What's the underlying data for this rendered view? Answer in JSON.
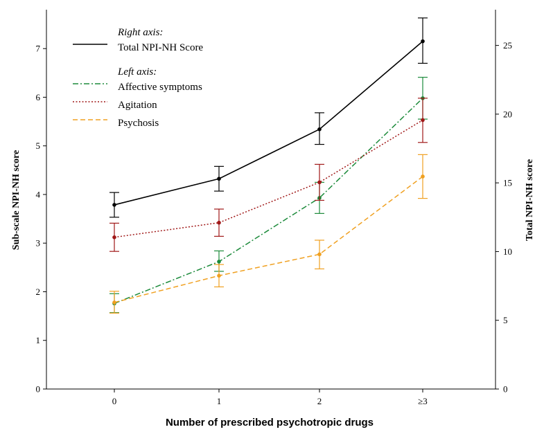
{
  "chart_data": {
    "type": "line",
    "categories": [
      "0",
      "1",
      "2",
      "≥3"
    ],
    "xlabel": "Number of prescribed psychotropic drugs",
    "ylabel_left": "Sub-scale NPI-NH score",
    "ylabel_right": "Total NPI-NH score",
    "ylim_left": [
      0,
      7.8
    ],
    "ylim_right": [
      0,
      27.6
    ],
    "yticks_left": [
      0,
      1,
      2,
      3,
      4,
      5,
      6,
      7
    ],
    "yticks_right": [
      0,
      5,
      10,
      15,
      20,
      25
    ],
    "grid": false,
    "legend_position": "top-left",
    "legend_groups": {
      "right_header": "Right axis:",
      "left_header": "Left axis:"
    },
    "series": [
      {
        "name": "Total NPI-NH Score",
        "axis": "right",
        "values": [
          13.4,
          15.3,
          18.9,
          25.3
        ],
        "err_low": [
          12.5,
          14.4,
          17.8,
          23.7
        ],
        "err_high": [
          14.3,
          16.2,
          20.1,
          27.0
        ],
        "color": "#000000",
        "dash": "solid"
      },
      {
        "name": "Affective symptoms",
        "axis": "left",
        "values": [
          1.76,
          2.62,
          3.93,
          5.98
        ],
        "err_low": [
          1.57,
          2.42,
          3.61,
          5.55
        ],
        "err_high": [
          1.96,
          2.84,
          4.25,
          6.41
        ],
        "color": "#1b8a3a",
        "dash": "dashdot"
      },
      {
        "name": "Agitation",
        "axis": "left",
        "values": [
          3.12,
          3.42,
          4.25,
          5.53
        ],
        "err_low": [
          2.83,
          3.14,
          3.88,
          5.07
        ],
        "err_high": [
          3.41,
          3.7,
          4.62,
          5.98
        ],
        "color": "#a01818",
        "dash": "dotted"
      },
      {
        "name": "Psychosis",
        "axis": "left",
        "values": [
          1.78,
          2.33,
          2.77,
          4.37
        ],
        "err_low": [
          1.56,
          2.1,
          2.47,
          3.92
        ],
        "err_high": [
          2.01,
          2.56,
          3.06,
          4.82
        ],
        "color": "#f0a020",
        "dash": "dashed"
      }
    ]
  }
}
